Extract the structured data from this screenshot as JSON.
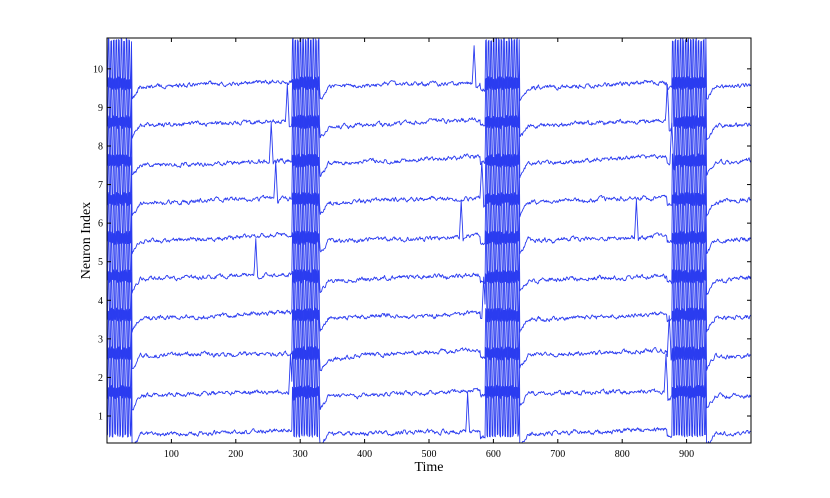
{
  "chart_data": {
    "type": "line",
    "xlabel": "Time",
    "ylabel": "Neuron Index",
    "xlim": [
      0,
      1000
    ],
    "ylim": [
      0.3,
      10.8
    ],
    "xticks": [
      "100",
      "200",
      "300",
      "400",
      "500",
      "600",
      "700",
      "800",
      "900"
    ],
    "yticks": [
      "1",
      "2",
      "3",
      "4",
      "5",
      "6",
      "7",
      "8",
      "9",
      "10"
    ],
    "grid": false,
    "line_color": "#2b3cf0",
    "bursts": [
      {
        "start": 2,
        "end": 38
      },
      {
        "start": 288,
        "end": 330
      },
      {
        "start": 588,
        "end": 640
      },
      {
        "start": 878,
        "end": 930
      }
    ],
    "series": [
      {
        "index": 1,
        "baseline": 0.05,
        "spikes": [
          560
        ]
      },
      {
        "index": 2,
        "baseline": 0.05,
        "spikes": [
          285,
          868
        ]
      },
      {
        "index": 3,
        "baseline": 0.05,
        "spikes": [
          873
        ]
      },
      {
        "index": 4,
        "baseline": 0.05,
        "spikes": [
          585
        ]
      },
      {
        "index": 5,
        "baseline": 0.05,
        "spikes": [
          231
        ]
      },
      {
        "index": 6,
        "baseline": 0.05,
        "spikes": [
          550,
          822
        ]
      },
      {
        "index": 7,
        "baseline": 0.05,
        "spikes": [
          262,
          582
        ]
      },
      {
        "index": 8,
        "baseline": 0.05,
        "spikes": [
          255,
          877
        ]
      },
      {
        "index": 9,
        "baseline": 0.05,
        "spikes": [
          280,
          870
        ]
      },
      {
        "index": 10,
        "baseline": 0.05,
        "spikes": [
          570
        ]
      }
    ]
  }
}
